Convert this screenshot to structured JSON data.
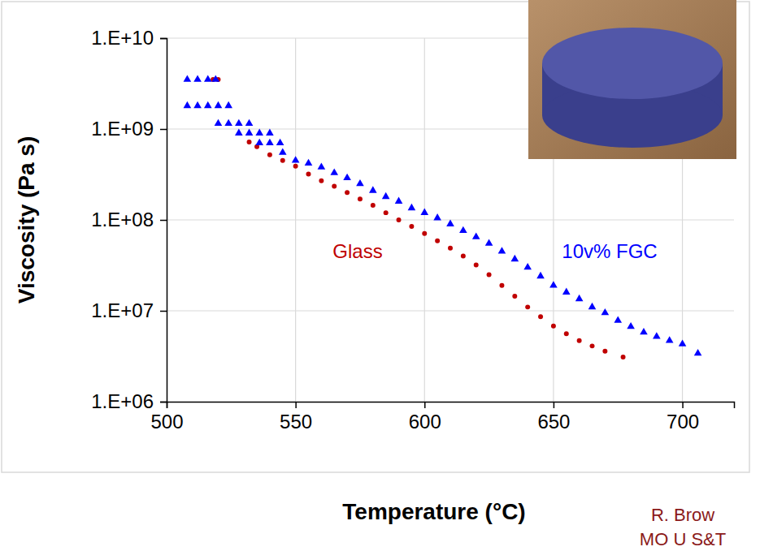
{
  "chart_data": {
    "type": "scatter",
    "x_label": "Temperature (°C)",
    "y_label": "Viscosity (Pa s)",
    "annotations": [
      "R. Brow",
      "MO U S&T"
    ],
    "log": "y",
    "grid": true,
    "xlim": [
      500,
      720
    ],
    "xticks": [
      500,
      550,
      600,
      650,
      700
    ],
    "ylim": [
      1000000,
      10000000000
    ],
    "yticks": [
      {
        "value": 1000000,
        "label": "1.E+06"
      },
      {
        "value": 10000000,
        "label": "1.E+07"
      },
      {
        "value": 100000000,
        "label": "1.E+08"
      },
      {
        "value": 1000000000,
        "label": "1.E+09"
      },
      {
        "value": 10000000000,
        "label": "1.E+10"
      }
    ],
    "series": [
      {
        "name": "Glass",
        "color": "#c00000",
        "marker": "circle",
        "x": [
          518,
          520,
          532,
          535,
          540,
          545,
          550,
          555,
          560,
          565,
          570,
          575,
          580,
          585,
          590,
          595,
          600,
          605,
          610,
          615,
          620,
          625,
          630,
          635,
          640,
          645,
          650,
          655,
          660,
          665,
          670,
          677
        ],
        "values": [
          3500000000,
          3500000000,
          720000000,
          640000000,
          520000000,
          450000000,
          390000000,
          320000000,
          270000000,
          235000000,
          200000000,
          170000000,
          145000000,
          120000000,
          100000000,
          85000000,
          71000000,
          59000000,
          49000000,
          40000000,
          32000000,
          25000000,
          19000000,
          14500000,
          11000000,
          8600000,
          6800000,
          5600000,
          4700000,
          4100000,
          3600000,
          3100000
        ]
      },
      {
        "name": "10v% FGC",
        "color": "#0000ff",
        "marker": "triangle",
        "x": [
          508,
          512,
          516,
          519,
          508,
          512,
          516,
          520,
          524,
          520,
          524,
          528,
          532,
          528,
          532,
          536,
          540,
          536,
          540,
          544,
          545,
          550,
          555,
          560,
          565,
          570,
          575,
          580,
          585,
          590,
          595,
          600,
          605,
          610,
          615,
          620,
          625,
          630,
          635,
          640,
          645,
          650,
          655,
          660,
          665,
          670,
          675,
          680,
          685,
          690,
          695,
          700,
          706
        ],
        "values": [
          3500000000,
          3500000000,
          3500000000,
          3500000000,
          1800000000,
          1800000000,
          1800000000,
          1800000000,
          1800000000,
          1150000000,
          1150000000,
          1150000000,
          1150000000,
          900000000,
          900000000,
          900000000,
          900000000,
          700000000,
          700000000,
          700000000,
          550000000,
          450000000,
          420000000,
          380000000,
          330000000,
          290000000,
          250000000,
          210000000,
          180000000,
          160000000,
          135000000,
          120000000,
          105000000,
          90000000,
          76000000,
          65000000,
          55000000,
          45000000,
          37000000,
          30000000,
          24000000,
          19000000,
          16000000,
          13500000,
          11000000,
          9500000,
          7800000,
          6700000,
          5800000,
          5200000,
          4700000,
          4300000,
          3400000
        ]
      }
    ]
  }
}
